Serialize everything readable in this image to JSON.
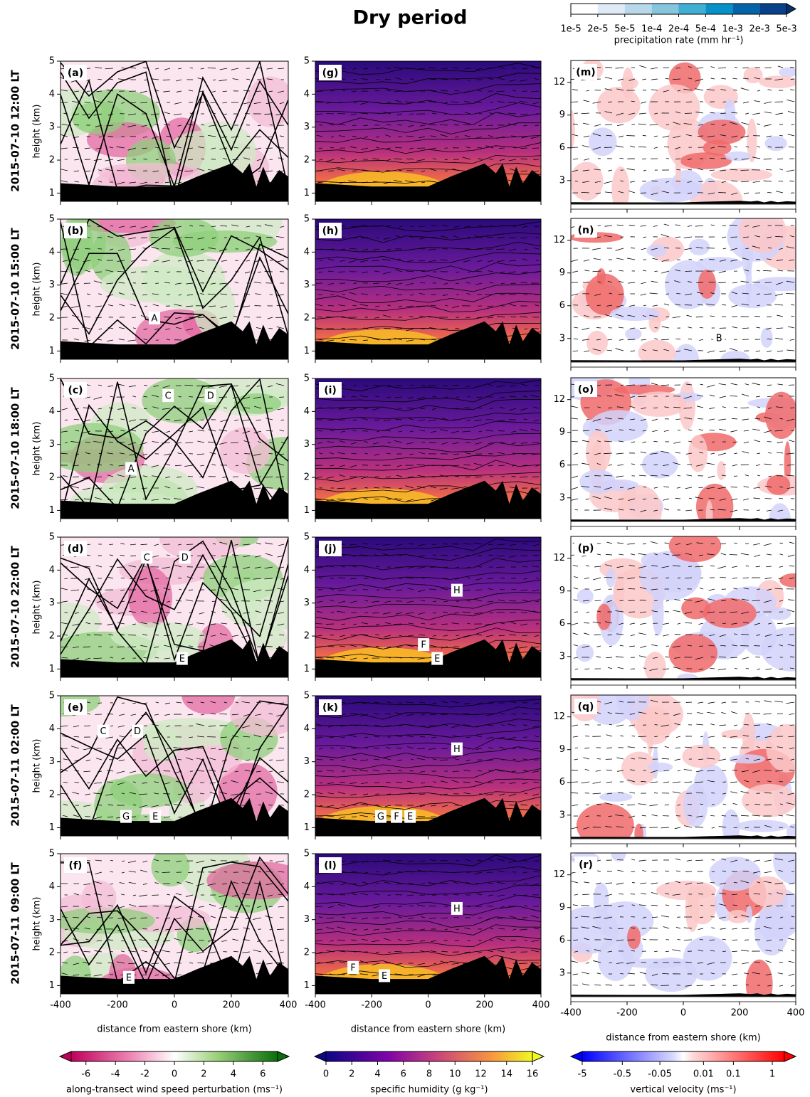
{
  "title": "Dry period",
  "row_labels": [
    "2015-07-10 12:00 LT",
    "2015-07-10 15:00 LT",
    "2015-07-10 18:00 LT",
    "2015-07-10 22:00 LT",
    "2015-07-11 02:00 LT",
    "2015-07-11 09:00 LT"
  ],
  "precipitation_colorbar": {
    "label": "precipitation rate (mm hr⁻¹)",
    "ticks": [
      {
        "value": 1e-05,
        "label": "1e-5"
      },
      {
        "value": 2e-05,
        "label": "2e-5"
      },
      {
        "value": 5e-05,
        "label": "5e-5"
      },
      {
        "value": 0.0001,
        "label": "1e-4"
      },
      {
        "value": 0.0002,
        "label": "2e-4"
      },
      {
        "value": 0.0005,
        "label": "5e-4"
      },
      {
        "value": 0.001,
        "label": "1e-3"
      },
      {
        "value": 0.002,
        "label": "2e-3"
      },
      {
        "value": 0.005,
        "label": "5e-3"
      }
    ]
  },
  "chart_data": [
    {
      "type": "contour",
      "field": "wind",
      "ylabel": "height (km)",
      "xlabel": "distance from eastern shore (km)",
      "xlim": [
        -400,
        400
      ],
      "xticks": [
        -400,
        -200,
        0,
        200,
        400
      ],
      "ylim": [
        0.75,
        5
      ],
      "yticks": [
        1,
        2,
        3,
        4,
        5
      ],
      "colorbar": {
        "label": "along-transect wind speed perturbation (ms⁻¹)",
        "lim": [
          -7,
          7
        ],
        "ticks": [
          -6,
          -4,
          -2,
          0,
          2,
          4,
          6
        ]
      },
      "panels": [
        {
          "label": "(a)",
          "annotations": []
        },
        {
          "label": "(b)",
          "annotations": [
            {
              "text": "A",
              "x": -70,
              "y": 2.0
            }
          ]
        },
        {
          "label": "(c)",
          "annotations": [
            {
              "text": "C",
              "x": -22,
              "y": 4.48
            },
            {
              "text": "D",
              "x": 127,
              "y": 4.48
            },
            {
              "text": "A",
              "x": -152,
              "y": 2.27
            }
          ]
        },
        {
          "label": "(d)",
          "annotations": [
            {
              "text": "C",
              "x": -97,
              "y": 4.39
            },
            {
              "text": "D",
              "x": 37,
              "y": 4.39
            },
            {
              "text": "E",
              "x": 27,
              "y": 1.32
            }
          ]
        },
        {
          "label": "(e)",
          "annotations": [
            {
              "text": "C",
              "x": -250,
              "y": 3.93
            },
            {
              "text": "D",
              "x": -130,
              "y": 3.93
            },
            {
              "text": "G",
              "x": -170,
              "y": 1.34
            },
            {
              "text": "E",
              "x": -67,
              "y": 1.34
            }
          ]
        },
        {
          "label": "(f)",
          "annotations": [
            {
              "text": "E",
              "x": -160,
              "y": 1.25
            }
          ]
        }
      ]
    },
    {
      "type": "contour",
      "field": "humidity",
      "xlabel": "distance from eastern shore (km)",
      "xlim": [
        -400,
        400
      ],
      "xticks": [
        -400,
        -200,
        0,
        200,
        400
      ],
      "ylim": [
        0.75,
        5
      ],
      "yticks": [
        1,
        2,
        3,
        4,
        5
      ],
      "colorbar": {
        "label": "specific humidity (g kg⁻¹)",
        "lim": [
          0,
          16
        ],
        "ticks": [
          0,
          2,
          4,
          6,
          8,
          10,
          12,
          14,
          16
        ]
      },
      "panels": [
        {
          "label": "(g)",
          "annotations": []
        },
        {
          "label": "(h)",
          "annotations": []
        },
        {
          "label": "(i)",
          "annotations": []
        },
        {
          "label": "(j)",
          "annotations": [
            {
              "text": "H",
              "x": 102,
              "y": 3.39
            },
            {
              "text": "F",
              "x": -16,
              "y": 1.74
            },
            {
              "text": "E",
              "x": 32,
              "y": 1.32
            }
          ]
        },
        {
          "label": "(k)",
          "annotations": [
            {
              "text": "H",
              "x": 102,
              "y": 3.39
            },
            {
              "text": "G",
              "x": -168,
              "y": 1.34
            },
            {
              "text": "F",
              "x": -112,
              "y": 1.34
            },
            {
              "text": "E",
              "x": -64,
              "y": 1.34
            }
          ]
        },
        {
          "label": "(l)",
          "annotations": [
            {
              "text": "H",
              "x": 102,
              "y": 3.34
            },
            {
              "text": "F",
              "x": -266,
              "y": 1.55
            },
            {
              "text": "E",
              "x": -155,
              "y": 1.3
            }
          ]
        }
      ]
    },
    {
      "type": "contour",
      "field": "vertical",
      "xlabel": "distance from eastern shore (km)",
      "xlim": [
        -400,
        400
      ],
      "xticks": [
        -400,
        -200,
        0,
        200,
        400
      ],
      "ylim": [
        0.9,
        14
      ],
      "yticks": [
        3,
        6,
        9,
        12
      ],
      "colorbar": {
        "label": "vertical velocity (ms⁻¹)",
        "scale": "symlog",
        "linthresh": 0.01,
        "lim": [
          -5,
          2
        ],
        "ticks": [
          -5,
          -0.5,
          -0.05,
          0.01,
          0.1,
          1
        ]
      },
      "panels": [
        {
          "label": "(m)",
          "annotations": []
        },
        {
          "label": "(n)",
          "annotations": [
            {
              "text": "B",
              "x": 127,
              "y": 3.04
            }
          ]
        },
        {
          "label": "(o)",
          "annotations": []
        },
        {
          "label": "(p)",
          "annotations": []
        },
        {
          "label": "(q)",
          "annotations": []
        },
        {
          "label": "(r)",
          "annotations": []
        }
      ]
    }
  ]
}
